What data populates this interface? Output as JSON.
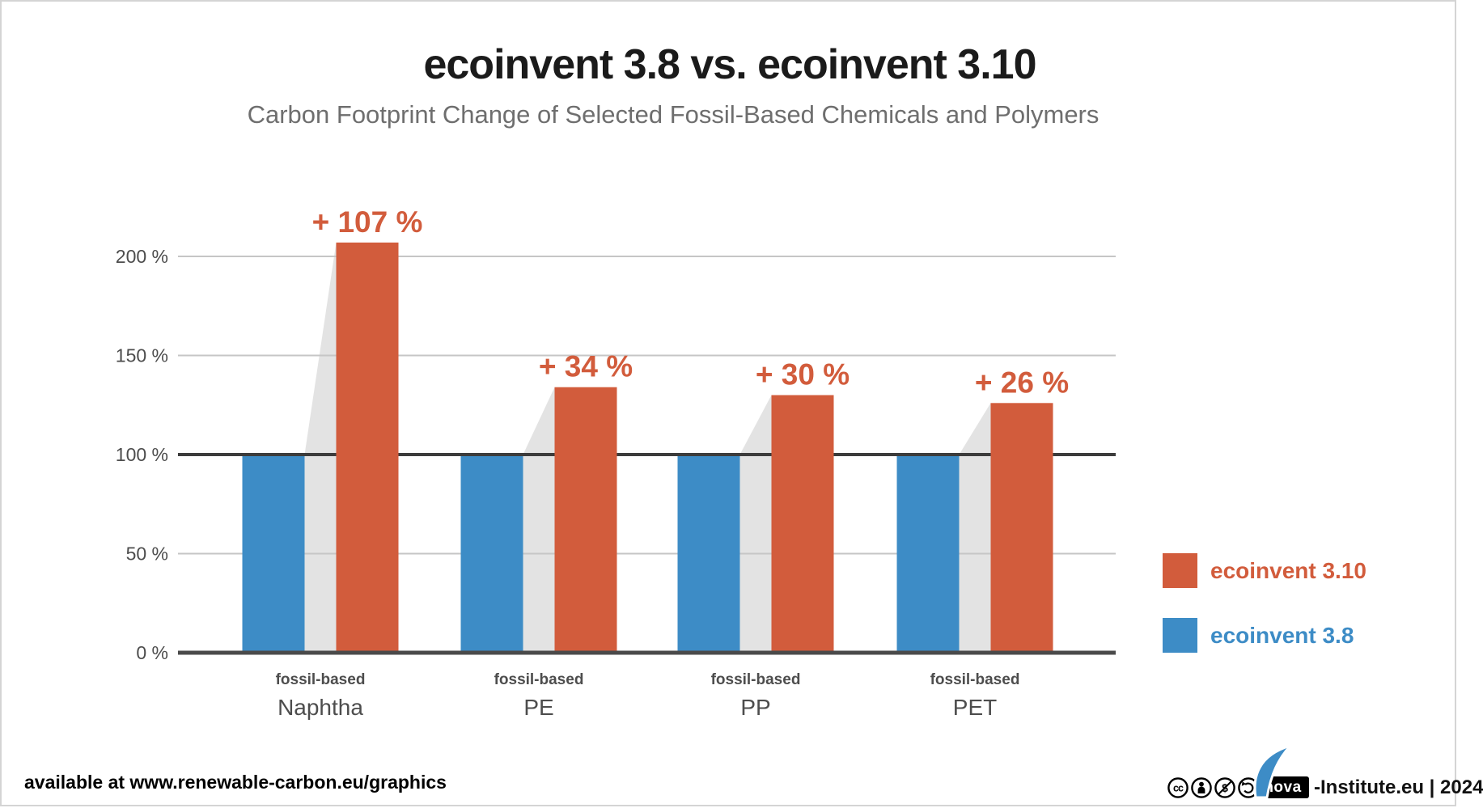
{
  "header": {
    "title": "ecoinvent 3.8 vs. ecoinvent 3.10",
    "subtitle": "Carbon Footprint Change of Selected Fossil-Based Chemicals and Polymers"
  },
  "chart_data": {
    "type": "bar",
    "title": "ecoinvent 3.8 vs. ecoinvent 3.10",
    "subtitle": "Carbon Footprint Change of Selected Fossil-Based Chemicals and Polymers",
    "categories": [
      "Naphtha",
      "PE",
      "PP",
      "PET"
    ],
    "category_prefix": "fossil-based",
    "series": [
      {
        "name": "ecoinvent 3.8",
        "color": "#3d8cc6",
        "values": [
          100,
          100,
          100,
          100
        ]
      },
      {
        "name": "ecoinvent 3.10",
        "color": "#d25c3c",
        "values": [
          207,
          134,
          130,
          126
        ]
      }
    ],
    "change_labels": [
      "+ 107 %",
      "+ 34 %",
      "+ 30 %",
      "+ 26 %"
    ],
    "yticks": [
      0,
      50,
      100,
      150,
      200
    ],
    "ytick_labels": [
      "0 %",
      "50 %",
      "100 %",
      "150 %",
      "200 %"
    ],
    "ylim": [
      0,
      215
    ],
    "baseline_value": 100,
    "grid": true,
    "legend_position": "right",
    "band_color": "#e3e3e3",
    "gridline_color": "#c6c6c6",
    "baseline_color": "#3c3c3c",
    "axis_color": "#4a4a4a",
    "tick_text_color": "#4d4d4d",
    "category_text_color": "#4d4d4d"
  },
  "legend": {
    "items": [
      {
        "label": "ecoinvent 3.10",
        "color": "#d25c3c"
      },
      {
        "label": "ecoinvent 3.8",
        "color": "#3d8cc6"
      }
    ]
  },
  "footer": {
    "left": "available at www.renewable-carbon.eu/graphics",
    "cc_icons": [
      "cc-icon",
      "by-icon",
      "nc-icon",
      "sa-icon"
    ],
    "nova_label": "nova",
    "right": "-Institute.eu | 2024"
  }
}
